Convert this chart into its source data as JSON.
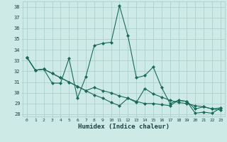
{
  "xlabel": "Humidex (Indice chaleur)",
  "bg_color": "#ceeae7",
  "grid_color": "#a8ccc9",
  "line_color": "#1a6b5a",
  "xlim": [
    -0.5,
    23.5
  ],
  "ylim": [
    27.8,
    38.5
  ],
  "yticks": [
    28,
    29,
    30,
    31,
    32,
    33,
    34,
    35,
    36,
    37,
    38
  ],
  "xticks": [
    0,
    1,
    2,
    3,
    4,
    5,
    6,
    7,
    8,
    9,
    10,
    11,
    12,
    13,
    14,
    15,
    16,
    17,
    18,
    19,
    20,
    21,
    22,
    23
  ],
  "series1_x": [
    0,
    1,
    2,
    3,
    4,
    5,
    6,
    7,
    8,
    9,
    10,
    11,
    12,
    13,
    14,
    15,
    16,
    17,
    18,
    19,
    20,
    21,
    22,
    23
  ],
  "series1_y": [
    33.3,
    32.1,
    32.2,
    30.9,
    30.9,
    33.2,
    29.5,
    31.5,
    34.4,
    34.6,
    34.7,
    38.1,
    35.3,
    31.4,
    31.6,
    32.4,
    30.5,
    29.0,
    29.3,
    29.2,
    28.1,
    28.2,
    28.1,
    28.6
  ],
  "series2_x": [
    0,
    1,
    2,
    3,
    4,
    5,
    6,
    7,
    8,
    9,
    10,
    11,
    12,
    13,
    14,
    15,
    16,
    17,
    18,
    19,
    20,
    21,
    22,
    23
  ],
  "series2_y": [
    33.3,
    32.1,
    32.2,
    31.8,
    31.4,
    31.0,
    30.6,
    30.2,
    29.8,
    29.5,
    29.1,
    28.8,
    29.5,
    29.1,
    30.4,
    29.9,
    29.6,
    29.3,
    29.1,
    29.0,
    28.8,
    28.7,
    28.5,
    28.4
  ],
  "series3_x": [
    0,
    1,
    2,
    3,
    4,
    5,
    6,
    7,
    8,
    9,
    10,
    11,
    12,
    13,
    14,
    15,
    16,
    17,
    18,
    19,
    20,
    21,
    22,
    23
  ],
  "series3_y": [
    33.3,
    32.1,
    32.2,
    31.8,
    31.4,
    31.0,
    30.6,
    30.2,
    30.5,
    30.2,
    30.0,
    29.7,
    29.5,
    29.2,
    29.0,
    29.0,
    28.9,
    28.8,
    29.3,
    29.2,
    28.5,
    28.7,
    28.5,
    28.6
  ]
}
